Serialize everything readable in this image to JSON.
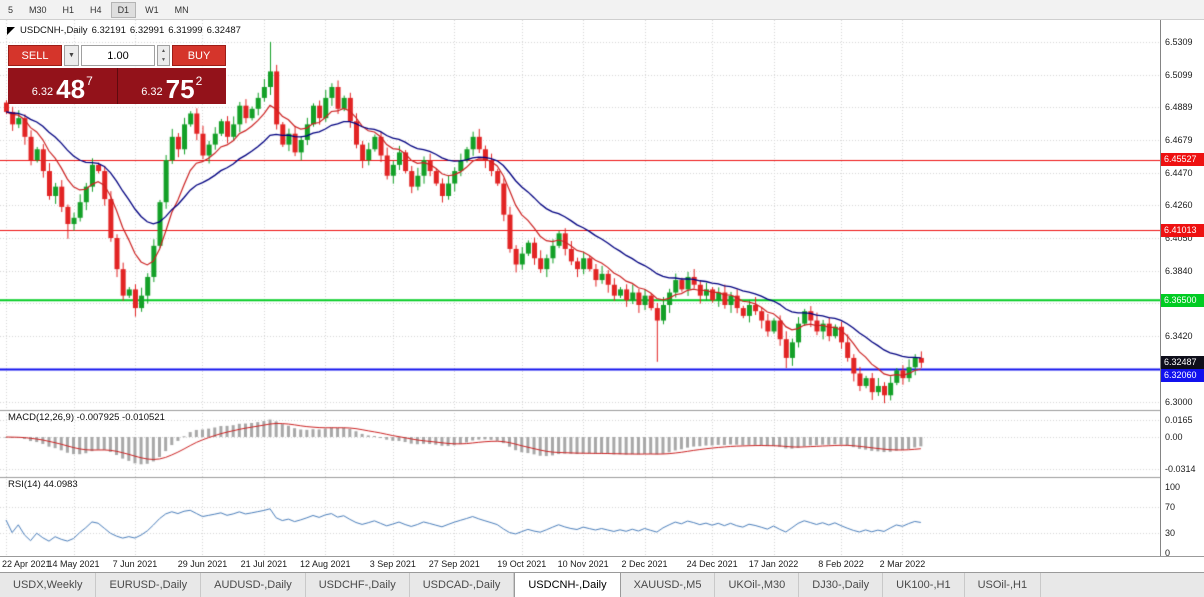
{
  "toolbar": {
    "timeframes": [
      {
        "label": "5",
        "active": false
      },
      {
        "label": "M30",
        "active": false
      },
      {
        "label": "H1",
        "active": false
      },
      {
        "label": "H4",
        "active": false
      },
      {
        "label": "D1",
        "active": true
      },
      {
        "label": "W1",
        "active": false
      },
      {
        "label": "MN",
        "active": false
      }
    ]
  },
  "chart_header": {
    "symbol": "USDCNH-,Daily",
    "open": "6.32191",
    "high": "6.32991",
    "low": "6.31999",
    "close": "6.32487"
  },
  "one_click": {
    "sell_label": "SELL",
    "buy_label": "BUY",
    "volume": "1.00",
    "sell_small": "6.32",
    "sell_big": "48",
    "sell_sup": "7",
    "buy_small": "6.32",
    "buy_big": "75",
    "buy_sup": "2"
  },
  "price_axis": {
    "ticks": [
      {
        "text": "6.5309",
        "price": 6.5309
      },
      {
        "text": "6.5099",
        "price": 6.5099
      },
      {
        "text": "6.4889",
        "price": 6.4889
      },
      {
        "text": "6.4679",
        "price": 6.4679
      },
      {
        "text": "6.4470",
        "price": 6.447
      },
      {
        "text": "6.4260",
        "price": 6.426
      },
      {
        "text": "6.4050",
        "price": 6.405
      },
      {
        "text": "6.3840",
        "price": 6.384
      },
      {
        "text": "6.3630",
        "price": 6.363
      },
      {
        "text": "6.3420",
        "price": 6.342
      },
      {
        "text": "6.3210",
        "price": 6.321
      },
      {
        "text": "6.3000",
        "price": 6.3
      }
    ],
    "badges": [
      {
        "text": "6.45527",
        "price": 6.45527,
        "bg": "#ee1111",
        "fg": "#ffffff"
      },
      {
        "text": "6.41013",
        "price": 6.41013,
        "bg": "#ee1111",
        "fg": "#ffffff"
      },
      {
        "text": "6.36500",
        "price": 6.365,
        "bg": "#00cc22",
        "fg": "#ffffff"
      },
      {
        "text": "6.32487",
        "price": 6.32487,
        "bg": "#0e0e1a",
        "fg": "#ffffff"
      },
      {
        "text": "6.32060",
        "price": 6.3206,
        "bg": "#1111ee",
        "fg": "#ffffff"
      }
    ]
  },
  "hlines": [
    {
      "price": 6.45527,
      "color": "#ee1111",
      "width": 1
    },
    {
      "price": 6.41013,
      "color": "#ee1111",
      "width": 1
    },
    {
      "price": 6.365,
      "color": "#00cc22",
      "width": 2
    },
    {
      "price": 6.3206,
      "color": "#1111ee",
      "width": 2
    }
  ],
  "macd": {
    "label": "MACD(12,26,9) -0.007925 -0.010521",
    "ticks": [
      {
        "text": "0.0165",
        "value": 0.0165
      },
      {
        "text": "0.00",
        "value": 0
      },
      {
        "text": "-0.0314",
        "value": -0.0314
      }
    ]
  },
  "rsi": {
    "label": "RSI(14) 44.0983",
    "ticks": [
      {
        "text": "100",
        "value": 100
      },
      {
        "text": "70",
        "value": 70
      },
      {
        "text": "30",
        "value": 30
      },
      {
        "text": "0",
        "value": 0
      }
    ],
    "levels": [
      70,
      30
    ]
  },
  "chart_data": {
    "type": "candlestick",
    "symbol": "USDCNH-",
    "timeframe": "Daily",
    "ylim": [
      6.3,
      6.5309
    ],
    "first_open": 6.492,
    "closes": [
      6.486,
      6.478,
      6.482,
      6.47,
      6.455,
      6.462,
      6.448,
      6.432,
      6.438,
      6.425,
      6.414,
      6.418,
      6.428,
      6.438,
      6.452,
      6.448,
      6.43,
      6.405,
      6.385,
      6.368,
      6.372,
      6.36,
      6.368,
      6.38,
      6.4,
      6.428,
      6.455,
      6.47,
      6.462,
      6.478,
      6.485,
      6.472,
      6.458,
      6.465,
      6.472,
      6.48,
      6.47,
      6.478,
      6.49,
      6.482,
      6.488,
      6.495,
      6.502,
      6.512,
      6.478,
      6.465,
      6.472,
      6.46,
      6.468,
      6.478,
      6.49,
      6.482,
      6.495,
      6.502,
      6.488,
      6.495,
      6.48,
      6.465,
      6.455,
      6.462,
      6.47,
      6.458,
      6.445,
      6.452,
      6.46,
      6.448,
      6.438,
      6.445,
      6.455,
      6.448,
      6.44,
      6.432,
      6.44,
      6.448,
      6.455,
      6.462,
      6.47,
      6.462,
      6.455,
      6.448,
      6.44,
      6.42,
      6.398,
      6.388,
      6.395,
      6.402,
      6.392,
      6.385,
      6.392,
      6.4,
      6.408,
      6.398,
      6.39,
      6.385,
      6.392,
      6.385,
      6.378,
      6.382,
      6.375,
      6.368,
      6.372,
      6.365,
      6.37,
      6.362,
      6.368,
      6.36,
      6.352,
      6.362,
      6.37,
      6.378,
      6.372,
      6.38,
      6.375,
      6.368,
      6.372,
      6.365,
      6.37,
      6.362,
      6.368,
      6.36,
      6.355,
      6.362,
      6.358,
      6.352,
      6.345,
      6.352,
      6.34,
      6.328,
      6.338,
      6.35,
      6.358,
      6.352,
      6.345,
      6.35,
      6.342,
      6.348,
      6.338,
      6.328,
      6.318,
      6.31,
      6.315,
      6.306,
      6.31,
      6.304,
      6.312,
      6.32,
      6.315,
      6.322,
      6.328,
      6.3249
    ],
    "spikes": {
      "10": {
        "l": 6.4045
      },
      "21": {
        "l": 6.3545
      },
      "43": {
        "h": 6.531
      },
      "106": {
        "l": 6.3255
      },
      "127": {
        "l": 6.3215
      },
      "141": {
        "l": 6.301
      }
    },
    "date_labels": [
      {
        "label": "22 Apr 2021",
        "idx": 0
      },
      {
        "label": "14 May 2021",
        "idx": 11
      },
      {
        "label": "7 Jun 2021",
        "idx": 21
      },
      {
        "label": "29 Jun 2021",
        "idx": 32
      },
      {
        "label": "21 Jul 2021",
        "idx": 42
      },
      {
        "label": "12 Aug 2021",
        "idx": 52
      },
      {
        "label": "3 Sep 2021",
        "idx": 63
      },
      {
        "label": "27 Sep 2021",
        "idx": 73
      },
      {
        "label": "19 Oct 2021",
        "idx": 84
      },
      {
        "label": "10 Nov 2021",
        "idx": 94
      },
      {
        "label": "2 Dec 2021",
        "idx": 104
      },
      {
        "label": "24 Dec 2021",
        "idx": 115
      },
      {
        "label": "17 Jan 2022",
        "idx": 125
      },
      {
        "label": "8 Feb 2022",
        "idx": 136
      },
      {
        "label": "2 Mar 2022",
        "idx": 146
      }
    ],
    "colors": {
      "up": "#13a027",
      "down": "#e22424",
      "ma_fast": "#cc2222",
      "ma_slow": "#000080",
      "macd_hist": "#a8a8a8",
      "macd_signal": "#cc2222",
      "rsi_line": "#4a7ebb",
      "grid": "#d6d6d6"
    }
  },
  "tabs": [
    {
      "label": "USDX,Weekly",
      "active": false
    },
    {
      "label": "EURUSD-,Daily",
      "active": false
    },
    {
      "label": "AUDUSD-,Daily",
      "active": false
    },
    {
      "label": "USDCHF-,Daily",
      "active": false
    },
    {
      "label": "USDCAD-,Daily",
      "active": false
    },
    {
      "label": "USDCNH-,Daily",
      "active": true
    },
    {
      "label": "XAUUSD-,M5",
      "active": false
    },
    {
      "label": "UKOil-,M30",
      "active": false
    },
    {
      "label": "DJ30-,Daily",
      "active": false
    },
    {
      "label": "UK100-,H1",
      "active": false
    },
    {
      "label": "USOil-,H1",
      "active": false
    }
  ]
}
